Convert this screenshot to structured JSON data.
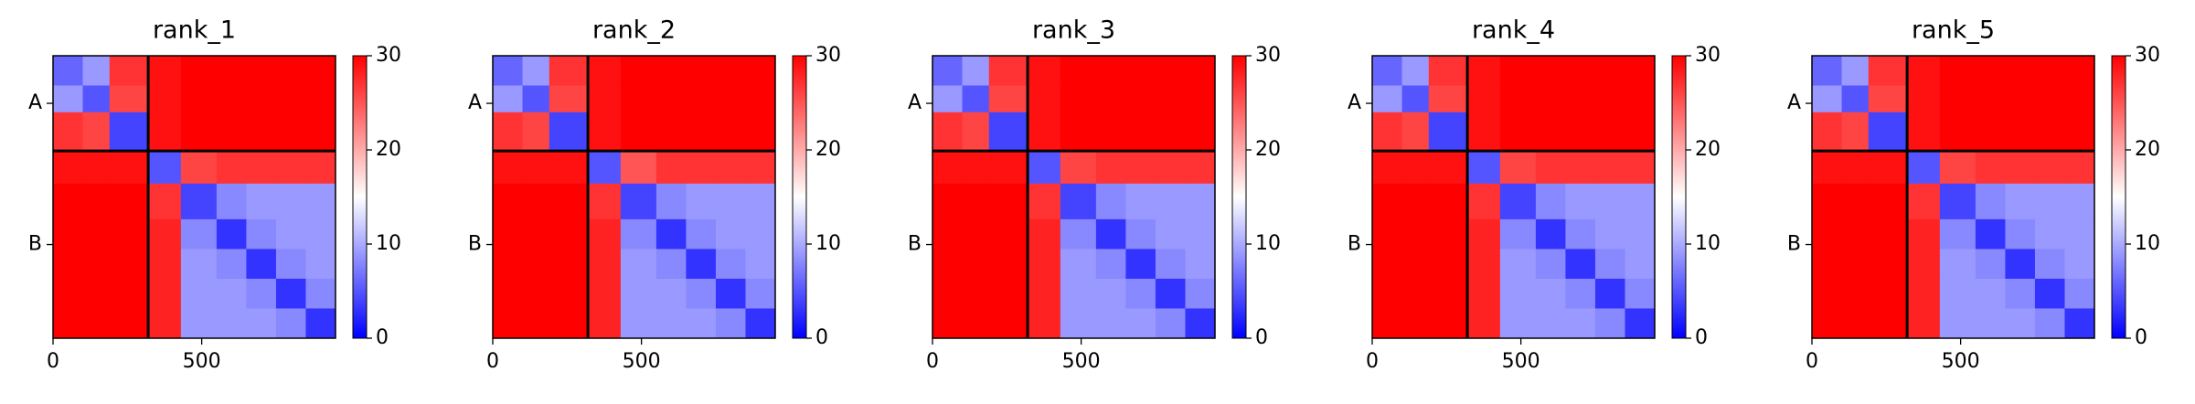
{
  "chart_data": [
    {
      "type": "heatmap",
      "title": "rank_1",
      "colormap": "bwr",
      "bins": [
        0,
        100,
        190,
        320,
        430,
        550,
        650,
        750,
        850,
        950
      ],
      "xlim": [
        0,
        950
      ],
      "ylim": [
        950,
        0
      ],
      "xticks": [
        0,
        500
      ],
      "yticks": [
        {
          "value": 160,
          "label": "A"
        },
        {
          "value": 635,
          "label": "B"
        }
      ],
      "chain_breaks": [
        320
      ],
      "clim": [
        0,
        30
      ],
      "cticks": [
        0,
        10,
        20,
        30
      ],
      "z": [
        [
          6,
          9,
          27,
          29,
          30,
          30,
          30,
          30,
          30
        ],
        [
          9,
          5,
          26,
          29,
          30,
          30,
          30,
          30,
          30
        ],
        [
          27,
          26,
          4,
          29,
          30,
          30,
          30,
          30,
          30
        ],
        [
          29,
          29,
          29,
          5,
          26,
          27,
          27,
          27,
          27
        ],
        [
          30,
          30,
          30,
          27,
          4,
          8,
          9,
          9,
          9
        ],
        [
          30,
          30,
          30,
          28,
          8,
          3,
          8,
          9,
          9
        ],
        [
          30,
          30,
          30,
          28,
          9,
          8,
          3,
          8,
          9
        ],
        [
          30,
          30,
          30,
          28,
          9,
          9,
          8,
          3,
          8
        ],
        [
          30,
          30,
          30,
          28,
          9,
          9,
          9,
          8,
          3
        ]
      ]
    },
    {
      "type": "heatmap",
      "title": "rank_2",
      "colormap": "bwr",
      "bins": [
        0,
        100,
        190,
        320,
        430,
        550,
        650,
        750,
        850,
        950
      ],
      "xlim": [
        0,
        950
      ],
      "ylim": [
        950,
        0
      ],
      "xticks": [
        0,
        500
      ],
      "yticks": [
        {
          "value": 160,
          "label": "A"
        },
        {
          "value": 635,
          "label": "B"
        }
      ],
      "chain_breaks": [
        320
      ],
      "clim": [
        0,
        30
      ],
      "cticks": [
        0,
        10,
        20,
        30
      ],
      "z": [
        [
          6,
          9,
          27,
          29,
          30,
          30,
          30,
          30,
          30
        ],
        [
          9,
          5,
          26,
          29,
          30,
          30,
          30,
          30,
          30
        ],
        [
          27,
          26,
          4,
          29,
          30,
          30,
          30,
          30,
          30
        ],
        [
          29,
          29,
          29,
          5,
          25,
          27,
          27,
          27,
          27
        ],
        [
          30,
          30,
          30,
          27,
          4,
          8,
          9,
          9,
          9
        ],
        [
          30,
          30,
          30,
          28,
          8,
          3,
          8,
          9,
          9
        ],
        [
          30,
          30,
          30,
          28,
          9,
          8,
          3,
          8,
          9
        ],
        [
          30,
          30,
          30,
          28,
          9,
          9,
          8,
          3,
          8
        ],
        [
          30,
          30,
          30,
          28,
          9,
          9,
          9,
          8,
          3
        ]
      ]
    },
    {
      "type": "heatmap",
      "title": "rank_3",
      "colormap": "bwr",
      "bins": [
        0,
        100,
        190,
        320,
        430,
        550,
        650,
        750,
        850,
        950
      ],
      "xlim": [
        0,
        950
      ],
      "ylim": [
        950,
        0
      ],
      "xticks": [
        0,
        500
      ],
      "yticks": [
        {
          "value": 160,
          "label": "A"
        },
        {
          "value": 635,
          "label": "B"
        }
      ],
      "chain_breaks": [
        320
      ],
      "clim": [
        0,
        30
      ],
      "cticks": [
        0,
        10,
        20,
        30
      ],
      "z": [
        [
          6,
          9,
          27,
          29,
          30,
          30,
          30,
          30,
          30
        ],
        [
          9,
          5,
          26,
          29,
          30,
          30,
          30,
          30,
          30
        ],
        [
          27,
          26,
          4,
          29,
          30,
          30,
          30,
          30,
          30
        ],
        [
          29,
          29,
          29,
          5,
          26,
          27,
          27,
          27,
          27
        ],
        [
          30,
          30,
          30,
          27,
          4,
          8,
          9,
          9,
          9
        ],
        [
          30,
          30,
          30,
          28,
          8,
          3,
          8,
          9,
          9
        ],
        [
          30,
          30,
          30,
          28,
          9,
          8,
          3,
          8,
          9
        ],
        [
          30,
          30,
          30,
          28,
          9,
          9,
          8,
          3,
          8
        ],
        [
          30,
          30,
          30,
          28,
          9,
          9,
          9,
          8,
          3
        ]
      ]
    },
    {
      "type": "heatmap",
      "title": "rank_4",
      "colormap": "bwr",
      "bins": [
        0,
        100,
        190,
        320,
        430,
        550,
        650,
        750,
        850,
        950
      ],
      "xlim": [
        0,
        950
      ],
      "ylim": [
        950,
        0
      ],
      "xticks": [
        0,
        500
      ],
      "yticks": [
        {
          "value": 160,
          "label": "A"
        },
        {
          "value": 635,
          "label": "B"
        }
      ],
      "chain_breaks": [
        320
      ],
      "clim": [
        0,
        30
      ],
      "cticks": [
        0,
        10,
        20,
        30
      ],
      "z": [
        [
          6,
          9,
          27,
          29,
          30,
          30,
          30,
          30,
          30
        ],
        [
          9,
          5,
          26,
          29,
          30,
          30,
          30,
          30,
          30
        ],
        [
          27,
          26,
          4,
          29,
          30,
          30,
          30,
          30,
          30
        ],
        [
          29,
          29,
          29,
          5,
          26,
          27,
          27,
          27,
          27
        ],
        [
          30,
          30,
          30,
          27,
          4,
          8,
          9,
          9,
          9
        ],
        [
          30,
          30,
          30,
          28,
          8,
          3,
          8,
          9,
          9
        ],
        [
          30,
          30,
          30,
          28,
          9,
          8,
          3,
          8,
          9
        ],
        [
          30,
          30,
          30,
          28,
          9,
          9,
          8,
          3,
          8
        ],
        [
          30,
          30,
          30,
          28,
          9,
          9,
          9,
          8,
          3
        ]
      ]
    },
    {
      "type": "heatmap",
      "title": "rank_5",
      "colormap": "bwr",
      "bins": [
        0,
        100,
        190,
        320,
        430,
        550,
        650,
        750,
        850,
        950
      ],
      "xlim": [
        0,
        950
      ],
      "ylim": [
        950,
        0
      ],
      "xticks": [
        0,
        500
      ],
      "yticks": [
        {
          "value": 160,
          "label": "A"
        },
        {
          "value": 635,
          "label": "B"
        }
      ],
      "chain_breaks": [
        320
      ],
      "clim": [
        0,
        30
      ],
      "cticks": [
        0,
        10,
        20,
        30
      ],
      "z": [
        [
          6,
          9,
          27,
          29,
          30,
          30,
          30,
          30,
          30
        ],
        [
          9,
          5,
          26,
          29,
          30,
          30,
          30,
          30,
          30
        ],
        [
          27,
          26,
          4,
          29,
          30,
          30,
          30,
          30,
          30
        ],
        [
          29,
          29,
          29,
          5,
          26,
          27,
          27,
          27,
          27
        ],
        [
          30,
          30,
          30,
          27,
          4,
          8,
          9,
          9,
          9
        ],
        [
          30,
          30,
          30,
          28,
          8,
          3,
          8,
          9,
          9
        ],
        [
          30,
          30,
          30,
          28,
          9,
          8,
          3,
          8,
          9
        ],
        [
          30,
          30,
          30,
          28,
          9,
          9,
          8,
          3,
          8
        ],
        [
          30,
          30,
          30,
          28,
          9,
          9,
          9,
          8,
          3
        ]
      ]
    }
  ]
}
